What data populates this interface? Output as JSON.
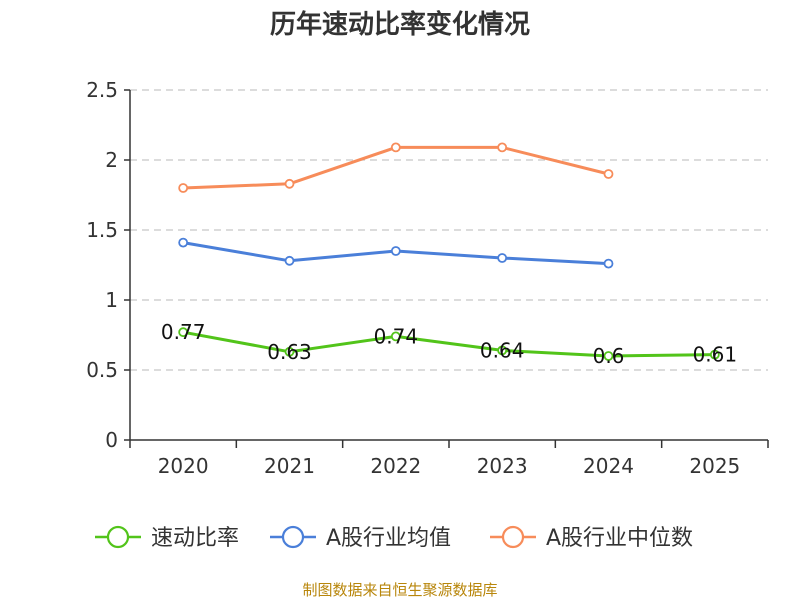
{
  "chart_data": {
    "type": "line",
    "title": "历年速动比率变化情况",
    "categories": [
      "2020",
      "2021",
      "2022",
      "2023",
      "2024",
      "2025"
    ],
    "ylim": [
      0,
      2.5
    ],
    "yticks": [
      "0",
      "0.5",
      "1",
      "1.5",
      "2",
      "2.5"
    ],
    "grid": true,
    "legend_position": "bottom",
    "series": [
      {
        "name": "速动比率",
        "color": "#52c41a",
        "values": [
          0.77,
          0.63,
          0.74,
          0.64,
          0.6,
          0.61
        ],
        "labels": [
          "0.77",
          "0.63",
          "0.74",
          "0.64",
          "0.6",
          "0.61"
        ]
      },
      {
        "name": "A股行业均值",
        "color": "#4a7fd9",
        "values": [
          1.41,
          1.28,
          1.35,
          1.3,
          1.26,
          null
        ]
      },
      {
        "name": "A股行业中位数",
        "color": "#f78c5a",
        "values": [
          1.8,
          1.83,
          2.09,
          2.09,
          1.9,
          null
        ]
      }
    ],
    "source": "制图数据来自恒生聚源数据库"
  }
}
